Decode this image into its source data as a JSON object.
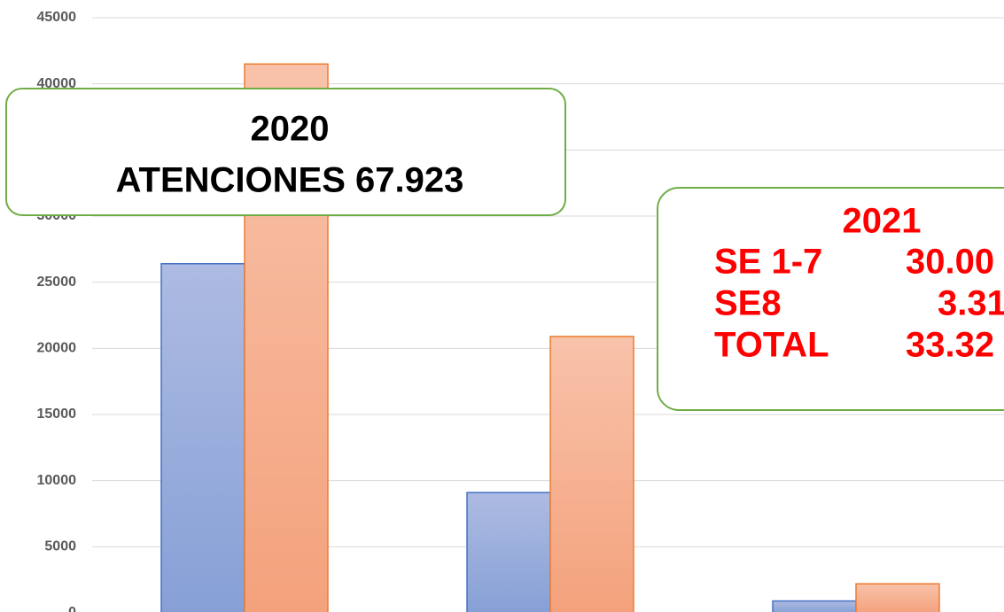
{
  "chart_data": {
    "type": "bar",
    "categories": [
      null,
      null,
      null
    ],
    "series": [
      {
        "color": "#4472c4",
        "values": [
          26400,
          9100,
          900
        ]
      },
      {
        "color": "#ed7d31",
        "values": [
          41500,
          20900,
          2200
        ]
      }
    ],
    "ylim": [
      0,
      45000
    ],
    "yticks": [
      0,
      5000,
      10000,
      15000,
      20000,
      25000,
      30000,
      35000,
      40000,
      45000
    ],
    "grid": true,
    "annotations": [
      {
        "lines": [
          "2020",
          "ATENCIONES 67.923"
        ]
      },
      {
        "title": "2021",
        "rows": [
          [
            "SE 1-7",
            "30.00"
          ],
          [
            "SE8",
            "3.31"
          ],
          [
            "TOTAL",
            "33.32"
          ]
        ]
      }
    ]
  }
}
